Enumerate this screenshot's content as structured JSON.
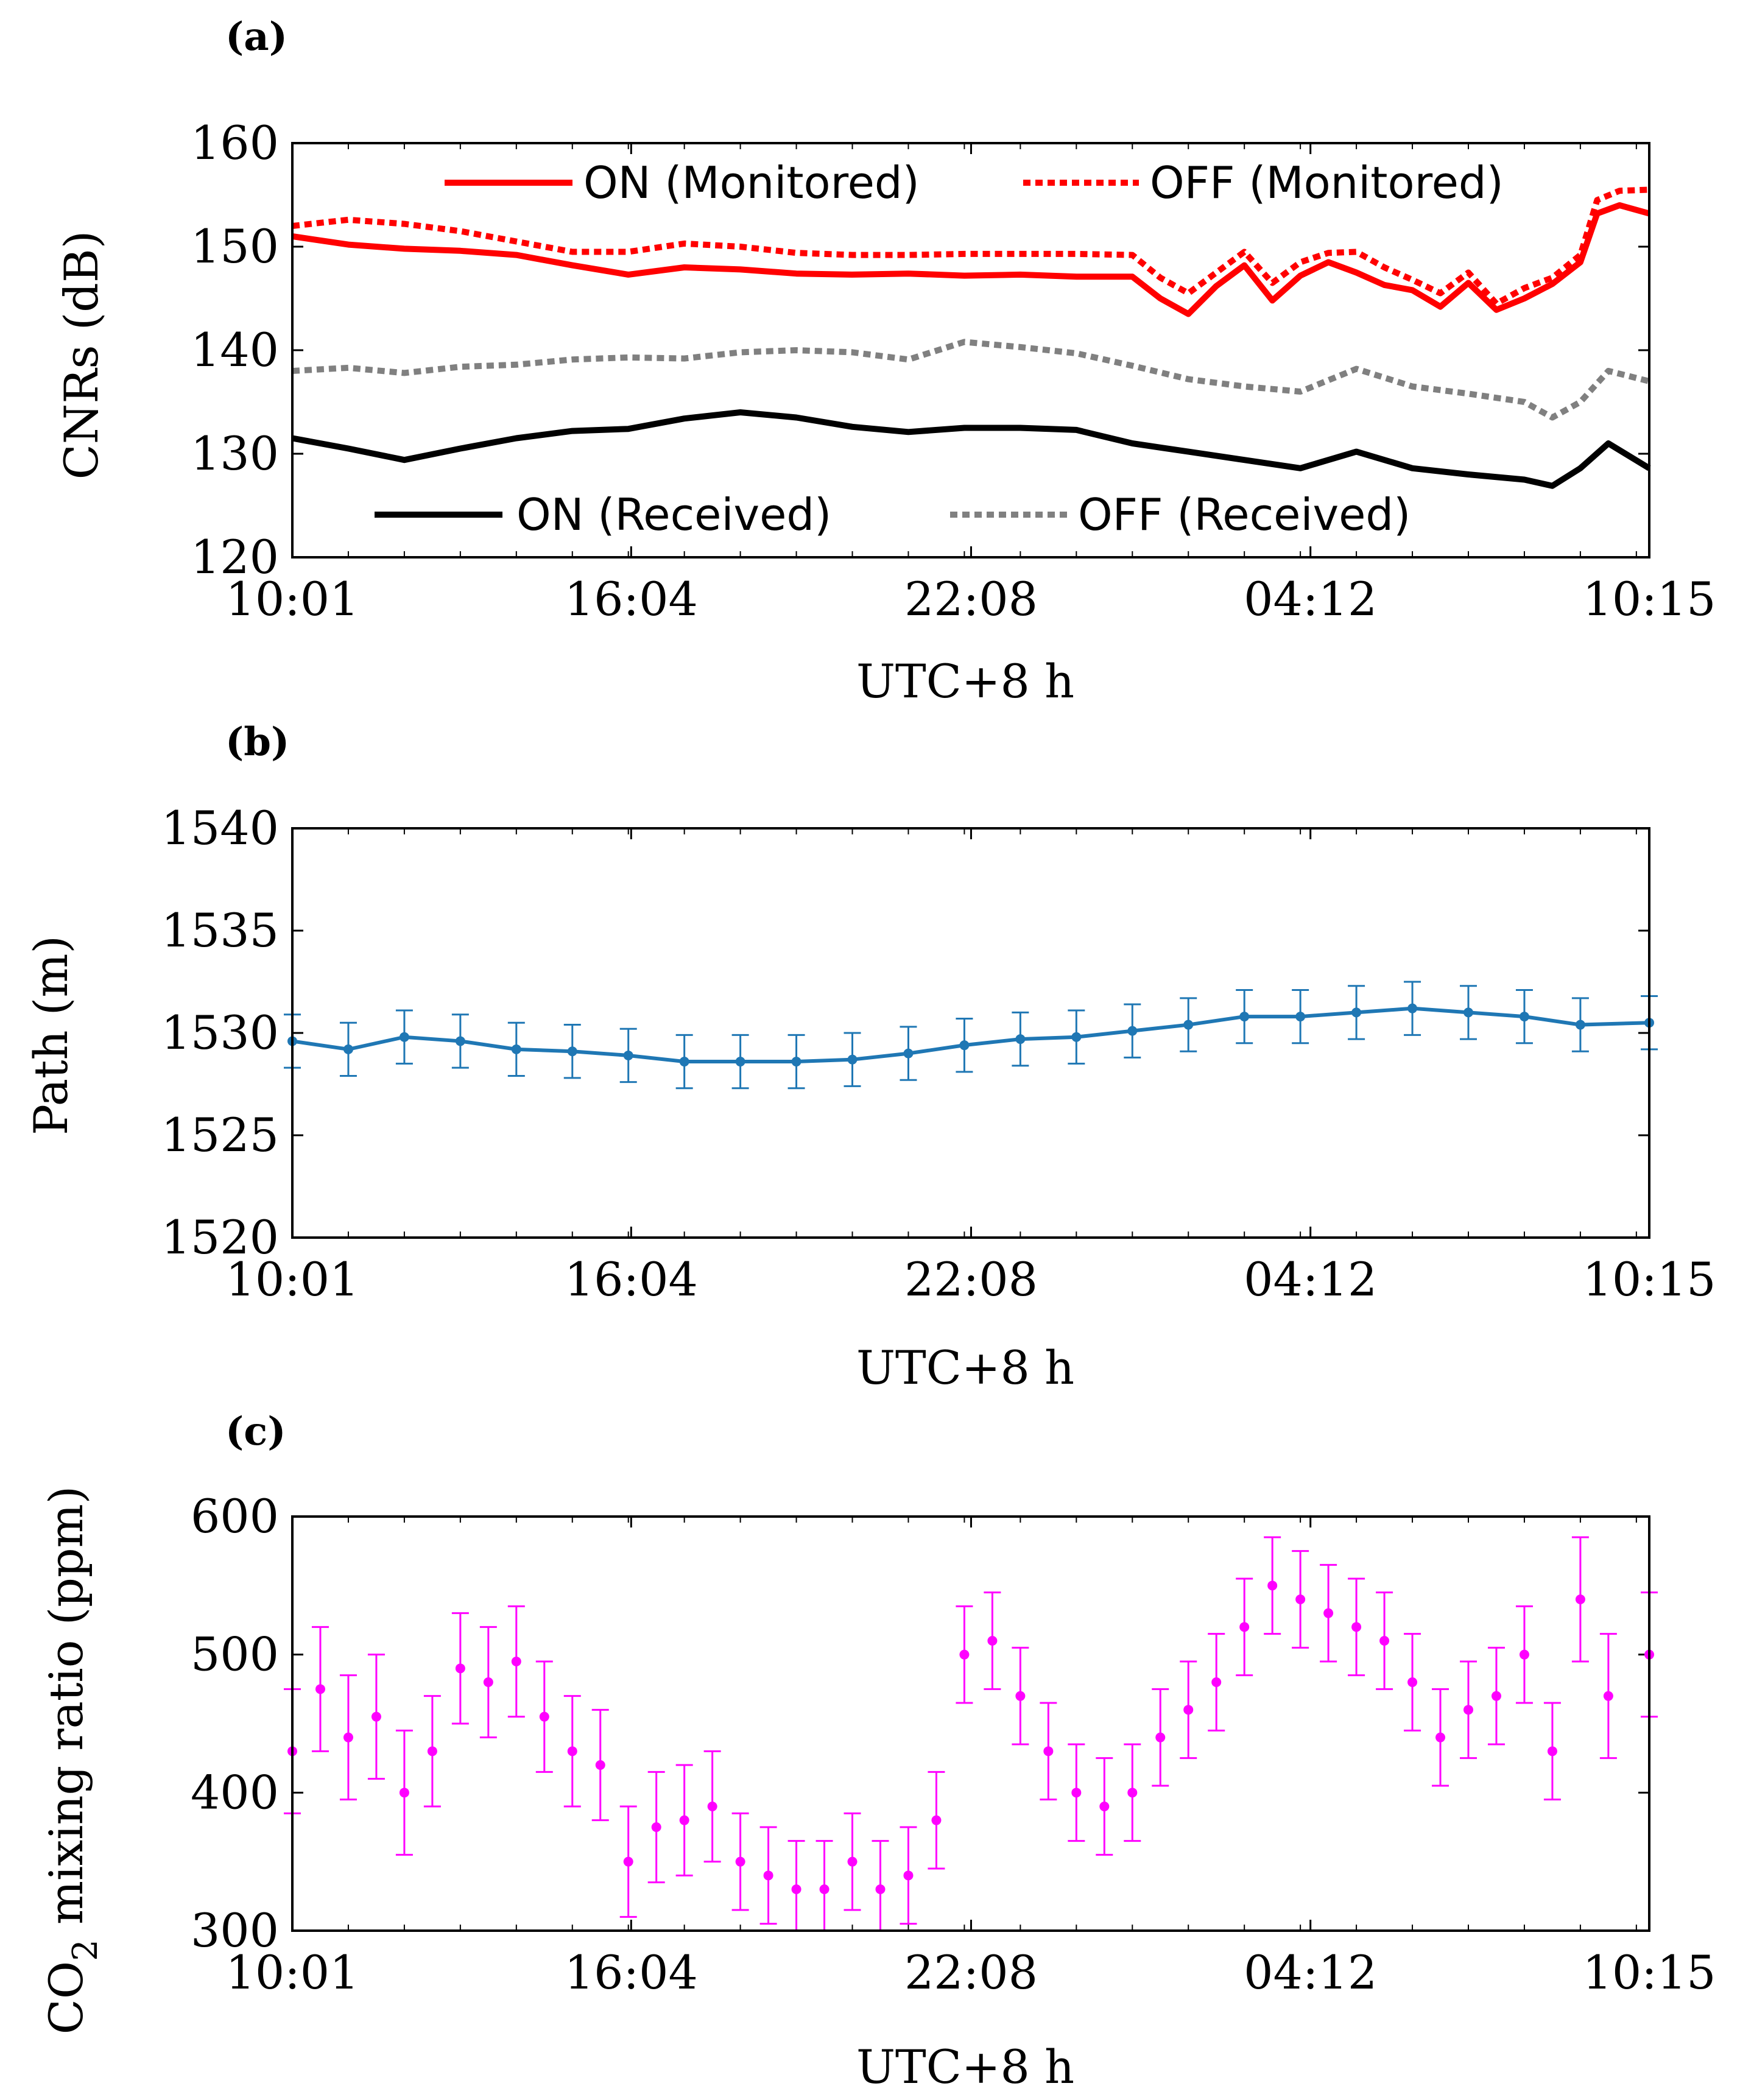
{
  "chart_data": [
    {
      "panel": "(a)",
      "type": "line",
      "xlabel": "UTC+8 h",
      "ylabel": "CNRs (dB)",
      "ylim": [
        120,
        160
      ],
      "yticks": [
        "120",
        "130",
        "140",
        "150",
        "160"
      ],
      "xlim": [
        0,
        24.23
      ],
      "xticks": [
        {
          "x": 0,
          "label": "10:01"
        },
        {
          "x": 6.05,
          "label": "16:04"
        },
        {
          "x": 12.12,
          "label": "22:08"
        },
        {
          "x": 18.18,
          "label": "04:12"
        },
        {
          "x": 24.23,
          "label": "10:15"
        }
      ],
      "series": [
        {
          "name": "ON (Monitored)",
          "color": "#ff0000",
          "style": "solid",
          "x": [
            0,
            1,
            2,
            3,
            4,
            5,
            6,
            7,
            8,
            9,
            10,
            11,
            12,
            13,
            14,
            15,
            15.5,
            16,
            16.5,
            17,
            17.5,
            18,
            18.5,
            19,
            19.5,
            20,
            20.5,
            21,
            21.5,
            22,
            22.5,
            23,
            23.3,
            23.7,
            24.23
          ],
          "y": [
            151,
            150.2,
            149.8,
            149.6,
            149.2,
            148.2,
            147.3,
            148,
            147.8,
            147.4,
            147.3,
            147.4,
            147.2,
            147.3,
            147.1,
            147.1,
            145,
            143.5,
            146.2,
            148.2,
            144.8,
            147.2,
            148.5,
            147.5,
            146.3,
            145.8,
            144.2,
            146.5,
            143.9,
            145,
            146.4,
            148.5,
            153.2,
            154,
            153.2
          ]
        },
        {
          "name": "OFF (Monitored)",
          "color": "#ff0000",
          "style": "dotted",
          "x": [
            0,
            1,
            2,
            3,
            4,
            5,
            6,
            7,
            8,
            9,
            10,
            11,
            12,
            13,
            14,
            15,
            15.5,
            16,
            16.5,
            17,
            17.5,
            18,
            18.5,
            19,
            19.5,
            20,
            20.5,
            21,
            21.5,
            22,
            22.5,
            23,
            23.3,
            23.7,
            24.23
          ],
          "y": [
            152,
            152.6,
            152.2,
            151.5,
            150.5,
            149.5,
            149.5,
            150.3,
            150,
            149.4,
            149.2,
            149.2,
            149.3,
            149.3,
            149.3,
            149.2,
            147,
            145.5,
            147.5,
            149.5,
            146.5,
            148.5,
            149.4,
            149.5,
            148,
            146.8,
            145.5,
            147.5,
            144.5,
            146,
            147,
            149.2,
            154.5,
            155.4,
            155.5
          ]
        },
        {
          "name": "ON (Received)",
          "color": "#000000",
          "style": "solid",
          "x": [
            0,
            1,
            2,
            3,
            4,
            5,
            6,
            7,
            8,
            9,
            10,
            11,
            12,
            13,
            14,
            15,
            16,
            17,
            18,
            19,
            20,
            21,
            22,
            22.5,
            23,
            23.5,
            24.23
          ],
          "y": [
            131.5,
            130.5,
            129.4,
            130.5,
            131.5,
            132.2,
            132.4,
            133.4,
            134,
            133.5,
            132.6,
            132.1,
            132.5,
            132.5,
            132.3,
            131,
            130.2,
            129.4,
            128.6,
            130.2,
            128.6,
            128,
            127.5,
            126.9,
            128.6,
            131,
            128.6
          ]
        },
        {
          "name": "OFF (Received)",
          "color": "#808080",
          "style": "dotted",
          "x": [
            0,
            1,
            2,
            3,
            4,
            5,
            6,
            7,
            8,
            9,
            10,
            11,
            12,
            13,
            14,
            15,
            16,
            17,
            18,
            19,
            20,
            21,
            22,
            22.5,
            23,
            23.5,
            24.23
          ],
          "y": [
            138,
            138.3,
            137.8,
            138.4,
            138.6,
            139.1,
            139.3,
            139.2,
            139.8,
            140,
            139.8,
            139.1,
            140.8,
            140.3,
            139.7,
            138.5,
            137.2,
            136.5,
            136,
            138.2,
            136.5,
            135.8,
            135,
            133.5,
            135,
            138,
            137
          ]
        }
      ]
    },
    {
      "panel": "(b)",
      "type": "scatter",
      "xlabel": "UTC+8 h",
      "ylabel": "Path (m)",
      "ylim": [
        1520,
        1540
      ],
      "yticks": [
        "1520",
        "1525",
        "1530",
        "1535",
        "1540"
      ],
      "xlim": [
        0,
        24.23
      ],
      "xticks": [
        {
          "x": 0,
          "label": "10:01"
        },
        {
          "x": 6.05,
          "label": "16:04"
        },
        {
          "x": 12.12,
          "label": "22:08"
        },
        {
          "x": 18.18,
          "label": "04:12"
        },
        {
          "x": 24.23,
          "label": "10:15"
        }
      ],
      "series": [
        {
          "name": "Path",
          "color": "#1f77b4",
          "x": [
            0,
            1,
            2,
            3,
            4,
            5,
            6,
            7,
            8,
            9,
            10,
            11,
            12,
            13,
            14,
            15,
            16,
            17,
            18,
            19,
            20,
            21,
            22,
            23,
            24.23
          ],
          "y": [
            1529.6,
            1529.2,
            1529.8,
            1529.6,
            1529.2,
            1529.1,
            1528.9,
            1528.6,
            1528.6,
            1528.6,
            1528.7,
            1529,
            1529.4,
            1529.7,
            1529.8,
            1530.1,
            1530.4,
            1530.8,
            1530.8,
            1531,
            1531.2,
            1531,
            1530.8,
            1530.4,
            1530.5
          ],
          "err": [
            1.3,
            1.3,
            1.3,
            1.3,
            1.3,
            1.3,
            1.3,
            1.3,
            1.3,
            1.3,
            1.3,
            1.3,
            1.3,
            1.3,
            1.3,
            1.3,
            1.3,
            1.3,
            1.3,
            1.3,
            1.3,
            1.3,
            1.3,
            1.3,
            1.3
          ]
        }
      ]
    },
    {
      "panel": "(c)",
      "type": "scatter",
      "xlabel": "UTC+8 h",
      "ylabel": "CO",
      "ylabel_sub": "2",
      "ylabel_rest": " mixing ratio (ppm)",
      "ylim": [
        300,
        600
      ],
      "yticks": [
        "300",
        "400",
        "500",
        "600"
      ],
      "xlim": [
        0,
        24.23
      ],
      "xticks": [
        {
          "x": 0,
          "label": "10:01"
        },
        {
          "x": 6.05,
          "label": "16:04"
        },
        {
          "x": 12.12,
          "label": "22:08"
        },
        {
          "x": 18.18,
          "label": "04:12"
        },
        {
          "x": 24.23,
          "label": "10:15"
        }
      ],
      "series": [
        {
          "name": "CO2",
          "color": "#ff00ff",
          "x": [
            0,
            0.5,
            1,
            1.5,
            2,
            2.5,
            3,
            3.5,
            4,
            4.5,
            5,
            5.5,
            6,
            6.5,
            7,
            7.5,
            8,
            8.5,
            9,
            9.5,
            10,
            10.5,
            11,
            11.5,
            12,
            12.5,
            13,
            13.5,
            14,
            14.5,
            15,
            15.5,
            16,
            16.5,
            17,
            17.5,
            18,
            18.5,
            19,
            19.5,
            20,
            20.5,
            21,
            21.5,
            22,
            22.5,
            23,
            23.5,
            24.23
          ],
          "y": [
            430,
            475,
            440,
            455,
            400,
            430,
            490,
            480,
            495,
            455,
            430,
            420,
            350,
            375,
            380,
            390,
            350,
            340,
            330,
            330,
            350,
            330,
            340,
            380,
            500,
            510,
            470,
            430,
            400,
            390,
            400,
            440,
            460,
            480,
            520,
            550,
            540,
            530,
            520,
            510,
            480,
            440,
            460,
            470,
            500,
            430,
            540,
            470,
            500
          ],
          "err": [
            45,
            45,
            45,
            45,
            45,
            40,
            40,
            40,
            40,
            40,
            40,
            40,
            40,
            40,
            40,
            40,
            35,
            35,
            35,
            35,
            35,
            35,
            35,
            35,
            35,
            35,
            35,
            35,
            35,
            35,
            35,
            35,
            35,
            35,
            35,
            35,
            35,
            35,
            35,
            35,
            35,
            35,
            35,
            35,
            35,
            35,
            45,
            45,
            45
          ]
        }
      ]
    }
  ]
}
